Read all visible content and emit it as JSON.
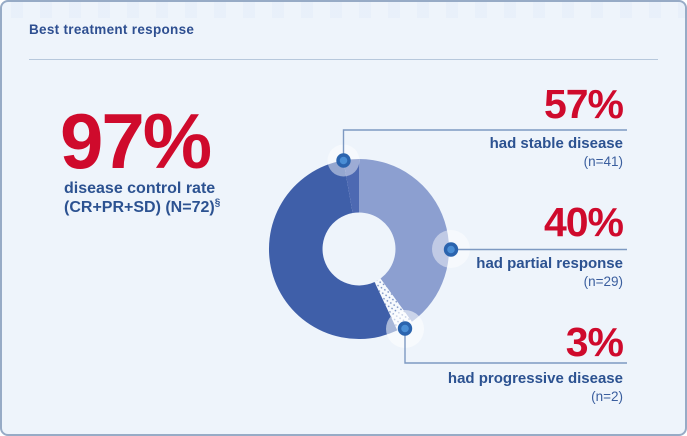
{
  "card": {
    "title": "Best treatment response"
  },
  "summary": {
    "value": "97%",
    "label_line1": "disease control rate",
    "label_line2": "(CR+PR+SD) (N=72)",
    "footnote_marker": "§"
  },
  "chart_data": {
    "type": "pie",
    "subtype": "donut",
    "title": "Best treatment response",
    "total_n": 72,
    "slices": [
      {
        "id": "stable",
        "value": 57,
        "percent_label": "57%",
        "label": "had stable disease",
        "n": 41,
        "n_label": "(n=41)",
        "color": "#3f5fa9"
      },
      {
        "id": "partial",
        "value": 40,
        "percent_label": "40%",
        "label": "had partial response",
        "n": 29,
        "n_label": "(n=29)",
        "color": "#8c9fd0"
      },
      {
        "id": "progressive",
        "value": 3,
        "percent_label": "3%",
        "label": "had progressive disease",
        "n": 2,
        "n_label": "(n=2)",
        "color": "pattern:dots"
      }
    ],
    "render": {
      "clockwise_from_top_indices": [
        1,
        2,
        0
      ],
      "start_angle_deg": 0,
      "stable_end_sliver_deg": 10,
      "stable_end_sliver_color": "#4d69b2",
      "center": [
        357,
        247
      ],
      "outer_radius": 90,
      "inner_radius": 36.5
    }
  },
  "colors": {
    "red": "#cf0a2c",
    "navy": "#2c5291",
    "title_navy": "#2e4f91",
    "card_bg": "#eef4fb",
    "card_border": "#97abc6",
    "callout_line": "#7d99c2",
    "dot_fill": "#4a8ed5",
    "dot_ring": "#2b64ae",
    "pattern_dot": "#7b93c4",
    "hole": "#f8fbfe"
  }
}
